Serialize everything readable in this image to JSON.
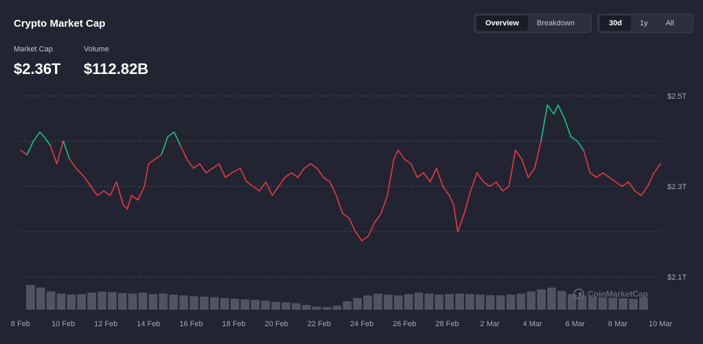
{
  "header": {
    "title": "Crypto Market Cap",
    "stats": [
      {
        "label": "Market Cap",
        "value": "$2.36T"
      },
      {
        "label": "Volume",
        "value": "$112.82B"
      }
    ]
  },
  "view_tabs": [
    {
      "label": "Overview",
      "active": true
    },
    {
      "label": "Breakdown",
      "active": false
    }
  ],
  "range_tabs": [
    {
      "label": "30d",
      "active": true
    },
    {
      "label": "1y",
      "active": false
    },
    {
      "label": "All",
      "active": false
    }
  ],
  "watermark": "CoinMarketCap",
  "colors": {
    "up": "#16c784",
    "down": "#ea3943",
    "volume": "#8a8f9f",
    "grid": "#5a5f70"
  },
  "chart_data": {
    "type": "line",
    "ylim": [
      2.1,
      2.5
    ],
    "y_ticks": [
      {
        "value": 2.5,
        "label": "$2.5T"
      },
      {
        "value": 2.4,
        "label": ""
      },
      {
        "value": 2.3,
        "label": "$2.3T"
      },
      {
        "value": 2.2,
        "label": ""
      },
      {
        "value": 2.1,
        "label": "$2.1T"
      }
    ],
    "baseline": 2.38,
    "x_range": [
      0,
      30
    ],
    "x_ticks": [
      {
        "x": 0,
        "label": "8 Feb"
      },
      {
        "x": 2,
        "label": "10 Feb"
      },
      {
        "x": 4,
        "label": "12 Feb"
      },
      {
        "x": 6,
        "label": "14 Feb"
      },
      {
        "x": 8,
        "label": "16 Feb"
      },
      {
        "x": 10,
        "label": "18 Feb"
      },
      {
        "x": 12,
        "label": "20 Feb"
      },
      {
        "x": 14,
        "label": "22 Feb"
      },
      {
        "x": 16,
        "label": "24 Feb"
      },
      {
        "x": 18,
        "label": "26 Feb"
      },
      {
        "x": 20,
        "label": "28 Feb"
      },
      {
        "x": 22,
        "label": "2 Mar"
      },
      {
        "x": 24,
        "label": "4 Mar"
      },
      {
        "x": 26,
        "label": "6 Mar"
      },
      {
        "x": 28,
        "label": "8 Mar"
      },
      {
        "x": 30,
        "label": "10 Mar"
      }
    ],
    "series": [
      {
        "x": [
          0,
          0.3,
          0.6,
          0.9,
          1.1,
          1.4,
          1.7,
          2.0,
          2.3,
          2.6,
          3.0,
          3.3,
          3.6,
          3.9,
          4.2,
          4.5,
          4.8,
          5.0,
          5.2,
          5.5,
          5.8,
          6.0,
          6.3,
          6.6,
          6.9,
          7.2,
          7.5,
          7.8,
          8.1,
          8.4,
          8.7,
          9.0,
          9.3,
          9.6,
          9.9,
          10.3,
          10.6,
          10.9,
          11.2,
          11.5,
          11.8,
          12.1,
          12.4,
          12.7,
          13.0,
          13.3,
          13.6,
          13.9,
          14.2,
          14.5,
          14.8,
          15.1,
          15.4,
          15.7,
          16.0,
          16.3,
          16.6,
          16.9,
          17.2,
          17.5,
          17.7,
          18.0,
          18.3,
          18.6,
          18.9,
          19.2,
          19.5,
          19.8,
          20.1,
          20.3,
          20.5,
          20.8,
          21.1,
          21.4,
          21.7,
          22.0,
          22.3,
          22.6,
          22.9,
          23.2,
          23.5,
          23.8,
          24.1,
          24.4,
          24.7,
          25.0,
          25.2,
          25.5,
          25.8,
          26.1,
          26.4,
          26.7,
          27.0,
          27.3,
          27.6,
          27.9,
          28.2,
          28.5,
          28.8,
          29.1,
          29.4,
          29.7,
          30.0
        ],
        "values": [
          2.38,
          2.37,
          2.4,
          2.42,
          2.41,
          2.39,
          2.35,
          2.4,
          2.36,
          2.34,
          2.32,
          2.3,
          2.28,
          2.29,
          2.28,
          2.31,
          2.26,
          2.25,
          2.28,
          2.27,
          2.3,
          2.35,
          2.36,
          2.37,
          2.41,
          2.42,
          2.39,
          2.36,
          2.34,
          2.35,
          2.33,
          2.34,
          2.35,
          2.32,
          2.33,
          2.34,
          2.31,
          2.3,
          2.29,
          2.31,
          2.28,
          2.3,
          2.32,
          2.33,
          2.32,
          2.34,
          2.35,
          2.34,
          2.32,
          2.31,
          2.28,
          2.24,
          2.23,
          2.2,
          2.18,
          2.19,
          2.22,
          2.24,
          2.28,
          2.36,
          2.38,
          2.36,
          2.35,
          2.32,
          2.33,
          2.31,
          2.34,
          2.3,
          2.28,
          2.26,
          2.2,
          2.24,
          2.29,
          2.33,
          2.31,
          2.3,
          2.31,
          2.29,
          2.3,
          2.38,
          2.36,
          2.32,
          2.34,
          2.4,
          2.48,
          2.46,
          2.48,
          2.45,
          2.41,
          2.4,
          2.38,
          2.33,
          2.32,
          2.33,
          2.32,
          2.31,
          2.3,
          2.31,
          2.29,
          2.28,
          2.3,
          2.33,
          2.35
        ]
      }
    ],
    "volume": [
      0.95,
      0.85,
      0.7,
      0.62,
      0.58,
      0.6,
      0.66,
      0.7,
      0.68,
      0.64,
      0.62,
      0.66,
      0.6,
      0.62,
      0.58,
      0.55,
      0.52,
      0.5,
      0.48,
      0.45,
      0.42,
      0.4,
      0.38,
      0.35,
      0.3,
      0.28,
      0.25,
      0.18,
      0.12,
      0.1,
      0.15,
      0.32,
      0.45,
      0.55,
      0.62,
      0.58,
      0.55,
      0.6,
      0.66,
      0.62,
      0.58,
      0.6,
      0.62,
      0.6,
      0.58,
      0.56,
      0.55,
      0.58,
      0.62,
      0.7,
      0.78,
      0.85,
      0.72,
      0.6,
      0.55,
      0.5,
      0.48,
      0.46,
      0.44,
      0.42,
      0.48
    ]
  }
}
